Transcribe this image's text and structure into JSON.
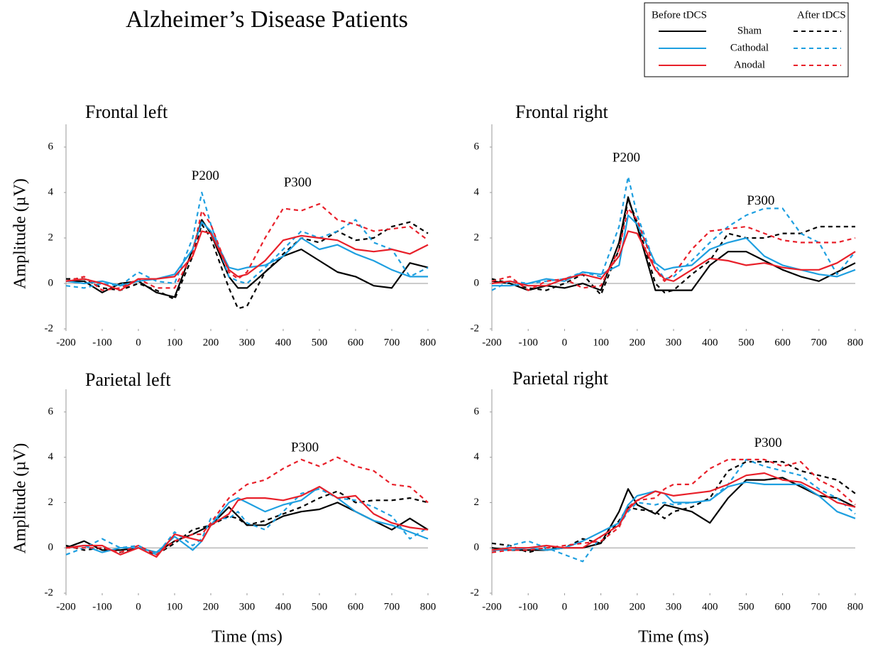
{
  "title": "Alzheimer’s Disease Patients",
  "legend": {
    "before_label": "Before tDCS",
    "after_label": "After tDCS",
    "items": [
      {
        "name": "Sham",
        "color": "#000000"
      },
      {
        "name": "Cathodal",
        "color": "#1e9fe0"
      },
      {
        "name": "Anodal",
        "color": "#e8202a"
      }
    ]
  },
  "chart_data": [
    {
      "type": "line",
      "title": "Frontal left",
      "ylabel": "Amplitude (µV)",
      "annotations": [
        "P200",
        "P300"
      ],
      "xlim": [
        -200,
        800
      ],
      "ylim": [
        -2,
        7
      ],
      "xticks": [
        -200,
        -100,
        0,
        100,
        200,
        300,
        400,
        500,
        600,
        700,
        800
      ],
      "yticks": [
        -2,
        0,
        2,
        4,
        6
      ],
      "x": [
        -200,
        -150,
        -100,
        -50,
        0,
        50,
        100,
        150,
        175,
        200,
        250,
        275,
        300,
        350,
        400,
        450,
        500,
        550,
        600,
        650,
        700,
        750,
        800
      ],
      "series": [
        {
          "color": "#000000",
          "dashed": false,
          "values": [
            0.1,
            0.1,
            -0.4,
            0,
            0.1,
            -0.4,
            -0.6,
            1.5,
            2.8,
            2.2,
            0.3,
            -0.2,
            -0.2,
            0.5,
            1.2,
            1.5,
            1.0,
            0.5,
            0.3,
            -0.1,
            -0.2,
            0.9,
            0.7
          ]
        },
        {
          "color": "#000000",
          "dashed": true,
          "values": [
            0.2,
            0.2,
            -0.2,
            -0.3,
            0,
            -0.3,
            -0.7,
            1.2,
            2.6,
            2.0,
            -0.2,
            -1.1,
            -1.0,
            0.5,
            1.3,
            2.0,
            1.8,
            2.3,
            1.9,
            2.0,
            2.5,
            2.7,
            2.2
          ]
        },
        {
          "color": "#1e9fe0",
          "dashed": false,
          "values": [
            0.1,
            0,
            0.1,
            -0.1,
            0.1,
            0.2,
            0.4,
            1.5,
            2.7,
            2.3,
            0.7,
            0.6,
            0.7,
            0.8,
            1.2,
            2.0,
            1.5,
            1.7,
            1.3,
            1.0,
            0.6,
            0.3,
            0.3
          ]
        },
        {
          "color": "#1e9fe0",
          "dashed": true,
          "values": [
            -0.1,
            -0.2,
            0,
            -0.1,
            0.5,
            0.1,
            0,
            2.0,
            4.0,
            2.6,
            0.3,
            0.1,
            0,
            0.7,
            1.5,
            2.3,
            2.0,
            2.3,
            2.8,
            1.8,
            1.5,
            0.3,
            0.7
          ]
        },
        {
          "color": "#e8202a",
          "dashed": false,
          "values": [
            0.1,
            0.2,
            0,
            -0.3,
            0.2,
            0.2,
            0.3,
            1.2,
            2.3,
            2.2,
            0.6,
            0.3,
            0.4,
            1.0,
            1.9,
            2.1,
            2.0,
            1.9,
            1.5,
            1.4,
            1.5,
            1.3,
            1.7
          ]
        },
        {
          "color": "#e8202a",
          "dashed": true,
          "values": [
            0.1,
            0.3,
            -0.3,
            -0.2,
            0.2,
            -0.2,
            -0.2,
            1.3,
            3.2,
            2.6,
            0.5,
            0.2,
            0.5,
            2.0,
            3.3,
            3.2,
            3.5,
            2.8,
            2.6,
            2.3,
            2.4,
            2.5,
            1.9
          ]
        }
      ]
    },
    {
      "type": "line",
      "title": "Frontal right",
      "annotations": [
        "P200",
        "P300"
      ],
      "xlim": [
        -200,
        800
      ],
      "ylim": [
        -2,
        7
      ],
      "xticks": [
        -200,
        -100,
        0,
        100,
        200,
        300,
        400,
        500,
        600,
        700,
        800
      ],
      "yticks": [
        -2,
        0,
        2,
        4,
        6
      ],
      "x": [
        -200,
        -150,
        -100,
        -50,
        0,
        50,
        100,
        150,
        175,
        200,
        250,
        275,
        300,
        350,
        400,
        450,
        500,
        550,
        600,
        650,
        700,
        750,
        800
      ],
      "series": [
        {
          "color": "#000000",
          "dashed": false,
          "values": [
            0.1,
            0,
            -0.3,
            -0.1,
            -0.2,
            0,
            -0.3,
            1.8,
            3.8,
            2.5,
            -0.3,
            -0.3,
            -0.3,
            -0.3,
            0.8,
            1.4,
            1.4,
            1.0,
            0.6,
            0.3,
            0.1,
            0.5,
            0.9
          ]
        },
        {
          "color": "#000000",
          "dashed": true,
          "values": [
            0.2,
            0,
            -0.2,
            -0.3,
            0,
            0.4,
            -0.5,
            1.5,
            3.7,
            2.7,
            0,
            -0.4,
            -0.3,
            0.4,
            1.0,
            2.2,
            2.0,
            2.0,
            2.2,
            2.2,
            2.5,
            2.5,
            2.5
          ]
        },
        {
          "color": "#1e9fe0",
          "dashed": false,
          "values": [
            -0.1,
            -0.1,
            0,
            0.2,
            0.1,
            0.5,
            0.4,
            0.8,
            3.0,
            2.6,
            0.9,
            0.6,
            0.7,
            0.8,
            1.5,
            1.8,
            2.0,
            1.2,
            0.8,
            0.6,
            0.4,
            0.3,
            0.6
          ]
        },
        {
          "color": "#1e9fe0",
          "dashed": true,
          "values": [
            -0.3,
            0.1,
            0,
            0.1,
            0.2,
            0.5,
            0.3,
            2.5,
            4.7,
            3.0,
            0.8,
            0.2,
            0.3,
            1.0,
            1.8,
            2.5,
            3.0,
            3.3,
            3.3,
            2.2,
            1.8,
            0.4,
            1.4
          ]
        },
        {
          "color": "#e8202a",
          "dashed": false,
          "values": [
            0,
            0.1,
            -0.1,
            -0.1,
            0.2,
            0.4,
            0.2,
            1.2,
            2.3,
            2.2,
            0.6,
            0.2,
            0.1,
            0.6,
            1.1,
            1.0,
            0.8,
            0.9,
            0.7,
            0.6,
            0.6,
            0.9,
            1.4
          ]
        },
        {
          "color": "#e8202a",
          "dashed": true,
          "values": [
            0.1,
            0.3,
            -0.3,
            0.1,
            0.2,
            -0.2,
            -0.1,
            1.5,
            3.3,
            2.8,
            0.6,
            0.1,
            0.4,
            1.5,
            2.3,
            2.4,
            2.5,
            2.2,
            1.9,
            1.8,
            1.8,
            1.8,
            2.0
          ]
        }
      ]
    },
    {
      "type": "line",
      "title": "Parietal left",
      "ylabel": "Amplitude (µV)",
      "xlabel": "Time (ms)",
      "annotations": [
        "P300"
      ],
      "xlim": [
        -200,
        800
      ],
      "ylim": [
        -2,
        7
      ],
      "xticks": [
        -200,
        -100,
        0,
        100,
        200,
        300,
        400,
        500,
        600,
        700,
        800
      ],
      "yticks": [
        -2,
        0,
        2,
        4,
        6
      ],
      "x": [
        -200,
        -150,
        -100,
        -50,
        0,
        50,
        100,
        150,
        175,
        200,
        250,
        275,
        300,
        350,
        400,
        450,
        500,
        550,
        600,
        650,
        700,
        750,
        800
      ],
      "series": [
        {
          "color": "#000000",
          "dashed": false,
          "values": [
            0,
            0.3,
            -0.1,
            -0.1,
            0,
            -0.2,
            0.3,
            0.6,
            0.8,
            1.0,
            1.8,
            1.4,
            1.0,
            1.0,
            1.4,
            1.6,
            1.7,
            2.0,
            1.6,
            1.2,
            0.8,
            1.3,
            0.8
          ]
        },
        {
          "color": "#000000",
          "dashed": true,
          "values": [
            0.1,
            -0.1,
            0,
            -0.2,
            0,
            -0.3,
            0.2,
            0.8,
            0.9,
            1.0,
            1.4,
            1.3,
            1.0,
            1.2,
            1.5,
            1.8,
            2.2,
            2.5,
            2.0,
            2.1,
            2.1,
            2.2,
            2.0
          ]
        },
        {
          "color": "#1e9fe0",
          "dashed": false,
          "values": [
            0,
            0.1,
            -0.2,
            0,
            0,
            -0.2,
            0.5,
            -0.1,
            0.3,
            1.0,
            2.0,
            2.2,
            2.0,
            1.6,
            1.9,
            2.1,
            2.7,
            2.2,
            1.6,
            1.2,
            1.0,
            0.7,
            0.4
          ]
        },
        {
          "color": "#1e9fe0",
          "dashed": true,
          "values": [
            -0.3,
            0,
            0.4,
            0,
            0.1,
            -0.3,
            0.7,
            0.1,
            0.4,
            1.3,
            1.3,
            1.6,
            1.1,
            0.8,
            1.6,
            2.4,
            2.6,
            2.2,
            2.1,
            1.8,
            1.4,
            0.4,
            0.9
          ]
        },
        {
          "color": "#e8202a",
          "dashed": false,
          "values": [
            0,
            0.1,
            0.1,
            -0.3,
            0,
            -0.4,
            0.6,
            0.4,
            0.3,
            1.0,
            1.5,
            2.1,
            2.2,
            2.2,
            2.1,
            2.3,
            2.7,
            2.2,
            2.3,
            1.5,
            1.1,
            0.9,
            0.8
          ]
        },
        {
          "color": "#e8202a",
          "dashed": true,
          "values": [
            0,
            0,
            0,
            -0.2,
            0.1,
            -0.3,
            0.3,
            0.6,
            0.6,
            1.1,
            2.2,
            2.5,
            2.8,
            3.0,
            3.5,
            3.9,
            3.6,
            4.0,
            3.6,
            3.4,
            2.8,
            2.7,
            2.0
          ]
        }
      ]
    },
    {
      "type": "line",
      "title": "Parietal right",
      "xlabel": "Time (ms)",
      "annotations": [
        "P300"
      ],
      "xlim": [
        -200,
        800
      ],
      "ylim": [
        -2,
        7
      ],
      "xticks": [
        -200,
        -100,
        0,
        100,
        200,
        300,
        400,
        500,
        600,
        700,
        800
      ],
      "yticks": [
        -2,
        0,
        2,
        4,
        6
      ],
      "x": [
        -200,
        -150,
        -100,
        -50,
        0,
        50,
        100,
        150,
        175,
        200,
        250,
        275,
        300,
        350,
        400,
        450,
        500,
        550,
        600,
        650,
        700,
        750,
        800
      ],
      "series": [
        {
          "color": "#000000",
          "dashed": false,
          "values": [
            0,
            -0.1,
            -0.1,
            -0.1,
            0,
            0,
            0.2,
            1.6,
            2.6,
            1.9,
            1.5,
            1.9,
            1.8,
            1.6,
            1.1,
            2.2,
            3.0,
            3.0,
            3.1,
            2.7,
            2.3,
            2.2,
            1.8
          ]
        },
        {
          "color": "#000000",
          "dashed": true,
          "values": [
            0.2,
            0.1,
            -0.2,
            0,
            0,
            0.4,
            0.2,
            1.2,
            1.8,
            1.7,
            1.6,
            1.3,
            1.6,
            1.8,
            2.2,
            3.4,
            3.8,
            3.8,
            3.8,
            3.4,
            3.2,
            3.0,
            2.4
          ]
        },
        {
          "color": "#1e9fe0",
          "dashed": false,
          "values": [
            -0.1,
            -0.1,
            0,
            -0.1,
            0,
            0.3,
            0.7,
            1.1,
            1.9,
            2.3,
            2.5,
            2.4,
            2.0,
            2.0,
            2.1,
            2.7,
            2.9,
            2.8,
            2.8,
            2.8,
            2.3,
            1.6,
            1.3
          ]
        },
        {
          "color": "#1e9fe0",
          "dashed": true,
          "values": [
            -0.2,
            0.1,
            0.3,
            0,
            -0.3,
            -0.6,
            0.5,
            1.0,
            1.6,
            2.0,
            1.9,
            2.0,
            1.9,
            2.0,
            2.1,
            2.8,
            3.9,
            3.6,
            3.4,
            3.2,
            2.6,
            2.2,
            1.5
          ]
        },
        {
          "color": "#e8202a",
          "dashed": false,
          "values": [
            -0.1,
            0,
            0,
            0.1,
            0,
            0,
            0.5,
            1.0,
            1.7,
            2.1,
            2.5,
            2.4,
            2.3,
            2.4,
            2.5,
            2.8,
            3.2,
            3.3,
            3.0,
            2.9,
            2.5,
            2.0,
            1.8
          ]
        },
        {
          "color": "#e8202a",
          "dashed": true,
          "values": [
            -0.2,
            -0.1,
            -0.1,
            0,
            0.1,
            0.2,
            0.3,
            0.9,
            1.8,
            2.1,
            2.2,
            2.6,
            2.8,
            2.8,
            3.5,
            3.9,
            3.9,
            3.9,
            3.6,
            3.8,
            3.0,
            2.6,
            1.9
          ]
        }
      ]
    }
  ]
}
